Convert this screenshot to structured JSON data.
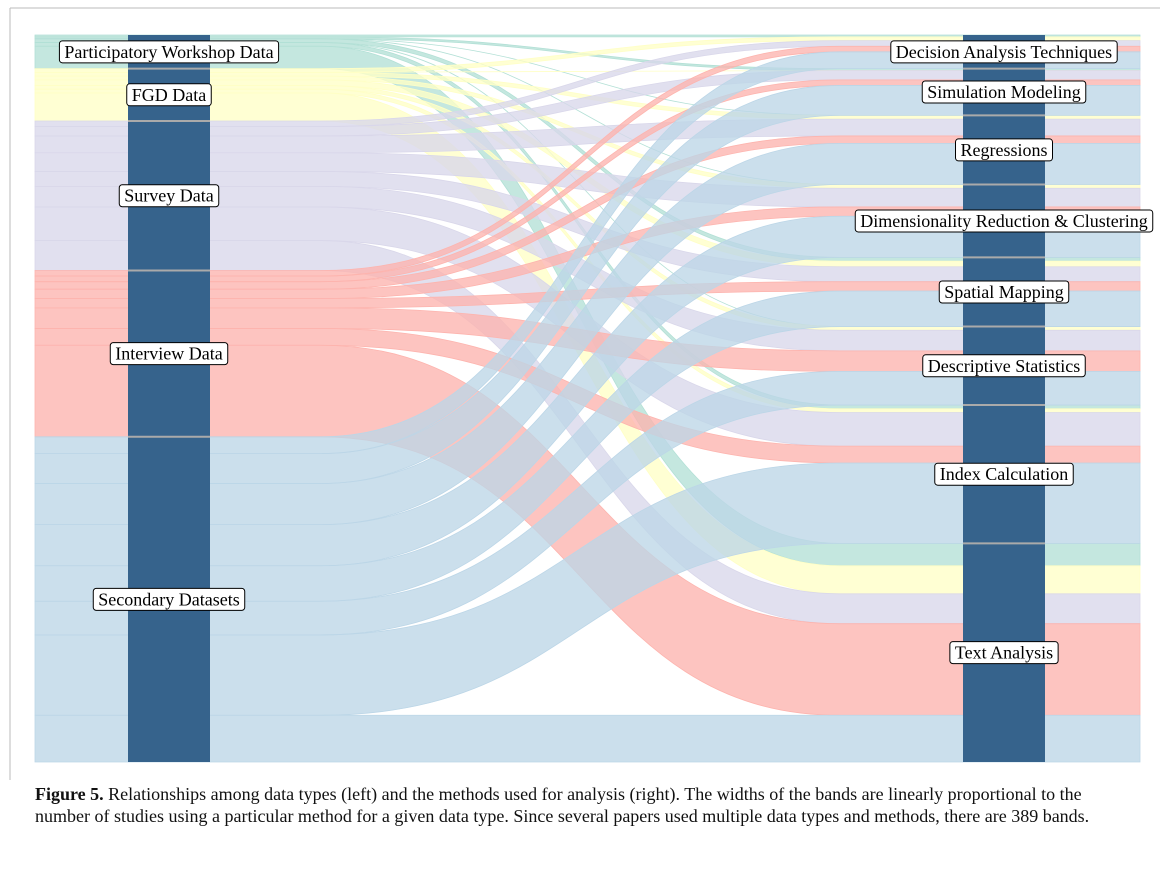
{
  "chart_data": {
    "type": "sankey",
    "sources": [
      "Participatory Workshop Data",
      "FGD Data",
      "Survey Data",
      "Interview Data",
      "Secondary Datasets"
    ],
    "source_colors": [
      "#b3e0d6",
      "#ffffc6",
      "#d9d7ea",
      "#fdb4ae",
      "#bcd6e7"
    ],
    "targets": [
      "Decision Analysis Techniques",
      "Simulation Modeling",
      "Regressions",
      "Dimensionality Reduction & Clustering",
      "Spatial Mapping",
      "Descriptive Statistics",
      "Index Calculation",
      "Text Analysis"
    ],
    "node_color": "#36638c",
    "flows": [
      [
        1,
        1,
        0,
        0,
        2,
        0,
        2,
        12
      ],
      [
        2,
        0,
        2,
        2,
        3,
        2,
        2,
        15
      ],
      [
        3,
        5,
        9,
        10,
        8,
        11,
        18,
        16
      ],
      [
        3,
        3,
        4,
        5,
        5,
        11,
        9,
        49
      ],
      [
        9,
        16,
        22,
        22,
        19,
        18,
        43,
        25
      ]
    ]
  },
  "caption": {
    "label": "Figure 5.",
    "text": "Relationships among data types (left) and the methods used for analysis (right). The widths of the bands are linearly proportional to the number of studies using a particular method for a given data type. Since several papers used multiple data types and methods, there are 389 bands."
  }
}
